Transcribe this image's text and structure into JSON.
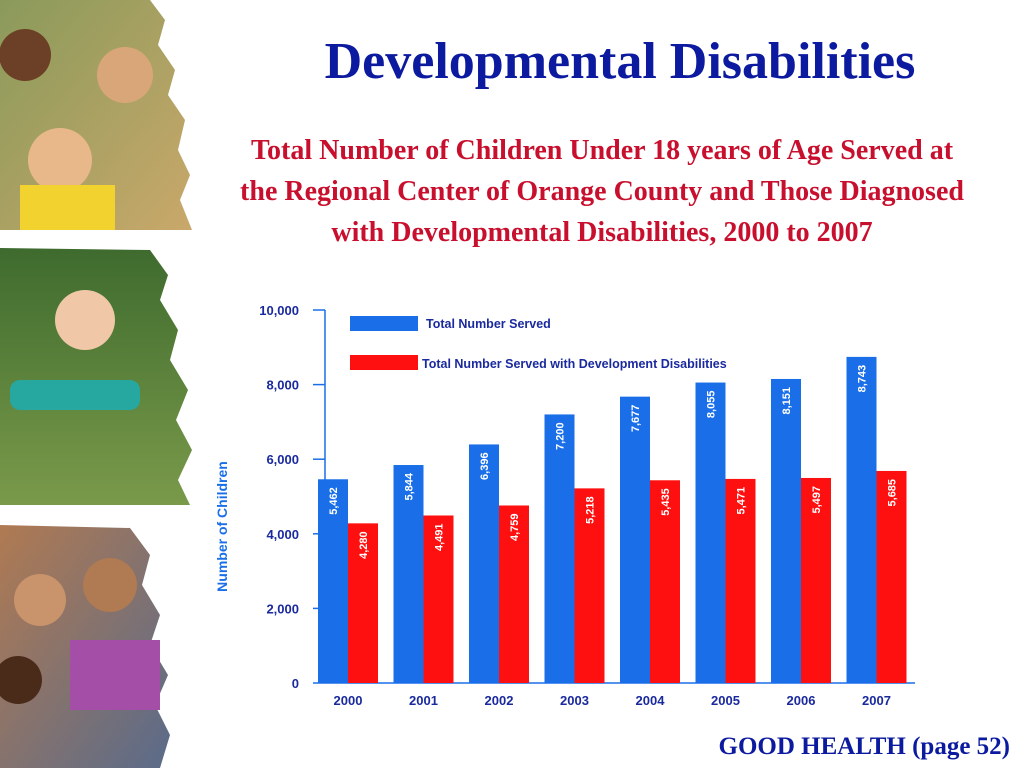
{
  "slide": {
    "title": "Developmental Disabilities",
    "subtitle": "Total Number of Children Under 18 years of Age Served at the Regional Center of Orange County and Those Diagnosed with Developmental Disabilities, 2000 to 2007",
    "footer": "GOOD HEALTH (page 52)"
  },
  "colors": {
    "title": "#0b1a9e",
    "subtitle": "#c8102e",
    "series_blue": "#1a6fe8",
    "series_red": "#ff1010",
    "axis": "#1a6fe8"
  },
  "chart_data": {
    "type": "bar",
    "ylabel": "Number of Children",
    "ylim": [
      0,
      10000
    ],
    "yticks": [
      "0",
      "2,000",
      "4,000",
      "6,000",
      "8,000",
      "10,000"
    ],
    "yticks_values": [
      0,
      2000,
      4000,
      6000,
      8000,
      10000
    ],
    "categories": [
      "2000",
      "2001",
      "2002",
      "2003",
      "2004",
      "2005",
      "2006",
      "2007"
    ],
    "series": [
      {
        "name": "Total Number Served",
        "values": [
          5462,
          5844,
          6396,
          7200,
          7677,
          8055,
          8151,
          8743
        ],
        "labels": [
          "5,462",
          "5,844",
          "6,396",
          "7,200",
          "7,677",
          "8,055",
          "8,151",
          "8,743"
        ],
        "color": "#1a6fe8"
      },
      {
        "name": "Total Number Served with Development Disabilities",
        "values": [
          4280,
          4491,
          4759,
          5218,
          5435,
          5471,
          5497,
          5685
        ],
        "labels": [
          "4,280",
          "4,491",
          "4,759",
          "5,218",
          "5,435",
          "5,471",
          "5,497",
          "5,685"
        ],
        "color": "#ff1010"
      }
    ],
    "legend_position": "top-left"
  }
}
